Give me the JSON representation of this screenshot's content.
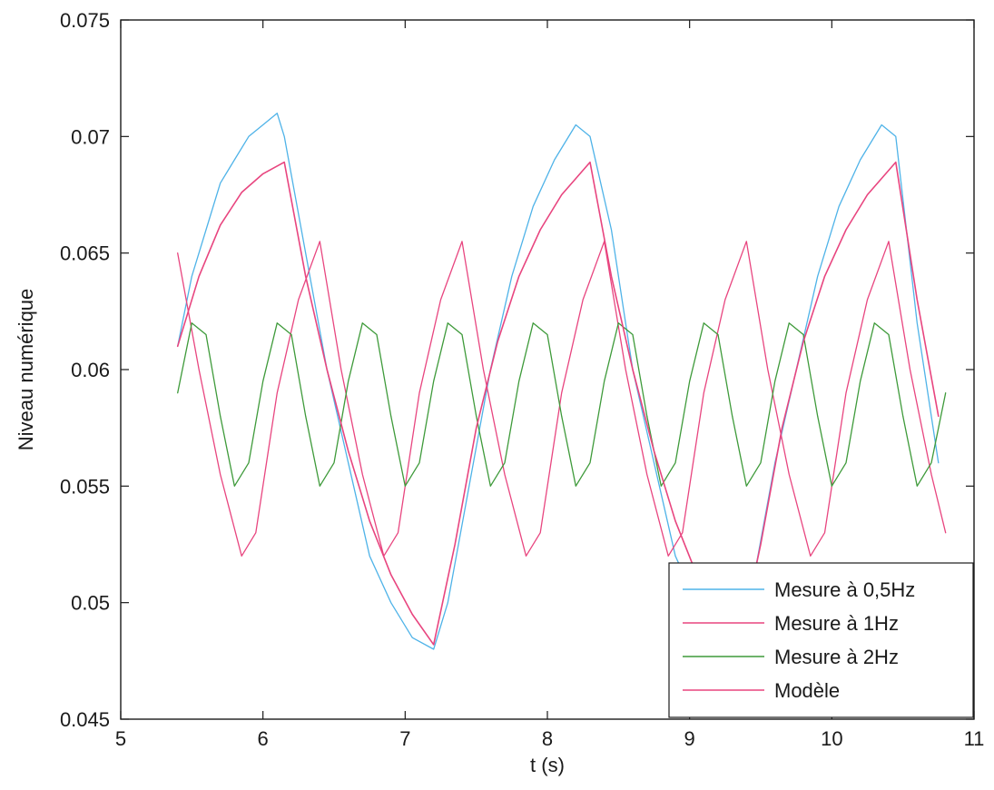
{
  "chart_data": {
    "type": "line",
    "title": "",
    "xlabel": "t (s)",
    "ylabel": "Niveau numérique",
    "xlim": [
      5,
      11
    ],
    "ylim": [
      0.045,
      0.075
    ],
    "xticks": [
      5,
      6,
      7,
      8,
      9,
      10,
      11
    ],
    "xtick_labels": [
      "5",
      "6",
      "7",
      "8",
      "9",
      "10",
      "11"
    ],
    "yticks": [
      0.045,
      0.05,
      0.055,
      0.06,
      0.065,
      0.07,
      0.075
    ],
    "ytick_labels": [
      "0.045",
      "0.05",
      "0.055",
      "0.06",
      "0.065",
      "0.07",
      "0.075"
    ],
    "grid": false,
    "legend_position": "bottom-right",
    "colors": {
      "mesure_05": "#4fb3e8",
      "mesure_1": "#e8457f",
      "mesure_2": "#3e9a3a",
      "modele": "#e8457f",
      "modele_2hz": "#d9a21f"
    },
    "series": [
      {
        "name": "Mesure à 0,5Hz",
        "x": [
          5.4,
          5.5,
          5.6,
          5.7,
          5.8,
          5.9,
          6.0,
          6.1,
          6.15,
          6.3,
          6.45,
          6.6,
          6.75,
          6.9,
          7.05,
          7.2,
          7.3,
          7.45,
          7.6,
          7.75,
          7.9,
          8.05,
          8.2,
          8.3,
          8.45,
          8.6,
          8.75,
          8.9,
          9.05,
          9.2,
          9.3,
          9.45,
          9.6,
          9.75,
          9.9,
          10.05,
          10.2,
          10.35,
          10.45,
          10.6,
          10.75
        ],
        "y": [
          0.061,
          0.064,
          0.066,
          0.068,
          0.069,
          0.07,
          0.0705,
          0.071,
          0.07,
          0.065,
          0.06,
          0.056,
          0.052,
          0.05,
          0.0485,
          0.048,
          0.05,
          0.055,
          0.06,
          0.064,
          0.067,
          0.069,
          0.0705,
          0.07,
          0.066,
          0.06,
          0.056,
          0.052,
          0.05,
          0.0485,
          0.048,
          0.051,
          0.056,
          0.06,
          0.064,
          0.067,
          0.069,
          0.0705,
          0.07,
          0.062,
          0.056
        ]
      },
      {
        "name": "Mesure à 1Hz",
        "x": [
          5.4,
          5.55,
          5.7,
          5.85,
          5.95,
          6.1,
          6.25,
          6.4,
          6.55,
          6.7,
          6.85,
          6.95,
          7.1,
          7.25,
          7.4,
          7.55,
          7.7,
          7.85,
          7.95,
          8.1,
          8.25,
          8.4,
          8.55,
          8.7,
          8.85,
          8.95,
          9.1,
          9.25,
          9.4,
          9.55,
          9.7,
          9.85,
          9.95,
          10.1,
          10.25,
          10.4,
          10.55,
          10.7,
          10.8
        ],
        "y": [
          0.065,
          0.06,
          0.0555,
          0.052,
          0.053,
          0.059,
          0.063,
          0.0655,
          0.06,
          0.0555,
          0.052,
          0.053,
          0.059,
          0.063,
          0.0655,
          0.06,
          0.0555,
          0.052,
          0.053,
          0.059,
          0.063,
          0.0655,
          0.06,
          0.0555,
          0.052,
          0.053,
          0.059,
          0.063,
          0.0655,
          0.06,
          0.0555,
          0.052,
          0.053,
          0.059,
          0.063,
          0.0655,
          0.06,
          0.0555,
          0.053
        ]
      },
      {
        "name": "Mesure à 2Hz",
        "x": [
          5.4,
          5.5,
          5.6,
          5.7,
          5.8,
          5.9,
          6.0,
          6.1,
          6.2,
          6.3,
          6.4,
          6.5,
          6.6,
          6.7,
          6.8,
          6.9,
          7.0,
          7.1,
          7.2,
          7.3,
          7.4,
          7.5,
          7.6,
          7.7,
          7.8,
          7.9,
          8.0,
          8.1,
          8.2,
          8.3,
          8.4,
          8.5,
          8.6,
          8.7,
          8.8,
          8.9,
          9.0,
          9.1,
          9.2,
          9.3,
          9.4,
          9.5,
          9.6,
          9.7,
          9.8,
          9.9,
          10.0,
          10.1,
          10.2,
          10.3,
          10.4,
          10.5,
          10.6,
          10.7,
          10.8
        ],
        "y": [
          0.059,
          0.062,
          0.0615,
          0.058,
          0.055,
          0.056,
          0.0595,
          0.062,
          0.0615,
          0.058,
          0.055,
          0.056,
          0.0595,
          0.062,
          0.0615,
          0.058,
          0.055,
          0.056,
          0.0595,
          0.062,
          0.0615,
          0.058,
          0.055,
          0.056,
          0.0595,
          0.062,
          0.0615,
          0.058,
          0.055,
          0.056,
          0.0595,
          0.062,
          0.0615,
          0.058,
          0.055,
          0.056,
          0.0595,
          0.062,
          0.0615,
          0.058,
          0.055,
          0.056,
          0.0595,
          0.062,
          0.0615,
          0.058,
          0.055,
          0.056,
          0.0595,
          0.062,
          0.0615,
          0.058,
          0.055,
          0.056,
          0.059
        ]
      },
      {
        "name": "Modèle",
        "x": [
          5.4,
          5.55,
          5.7,
          5.85,
          6.0,
          6.15,
          6.3,
          6.45,
          6.6,
          6.75,
          6.9,
          7.05,
          7.2,
          7.35,
          7.5,
          7.65,
          7.8,
          7.95,
          8.1,
          8.3,
          8.45,
          8.6,
          8.75,
          8.9,
          9.05,
          9.2,
          9.35,
          9.5,
          9.65,
          9.8,
          9.95,
          10.1,
          10.25,
          10.45,
          10.6,
          10.75
        ],
        "y": [
          0.061,
          0.064,
          0.0662,
          0.0676,
          0.0684,
          0.0689,
          0.064,
          0.06,
          0.0565,
          0.0535,
          0.0512,
          0.0495,
          0.0482,
          0.0525,
          0.0575,
          0.0612,
          0.064,
          0.066,
          0.0675,
          0.0689,
          0.064,
          0.06,
          0.0565,
          0.0535,
          0.0512,
          0.0495,
          0.0482,
          0.0525,
          0.0575,
          0.0612,
          0.064,
          0.066,
          0.0675,
          0.0689,
          0.063,
          0.058
        ]
      }
    ]
  }
}
